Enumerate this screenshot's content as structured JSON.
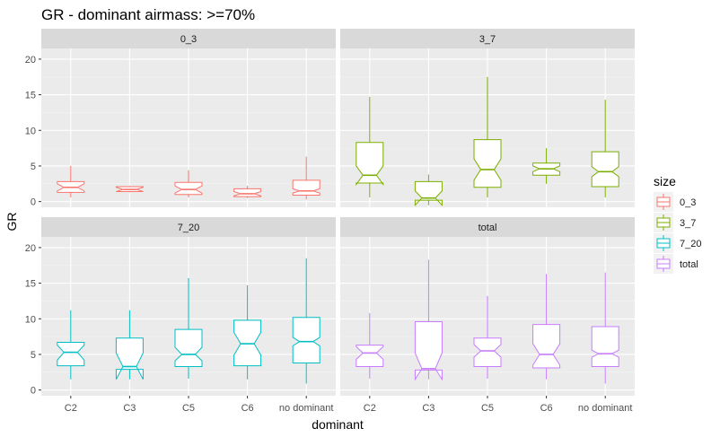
{
  "chart_data": {
    "type": "boxplot",
    "title": "GR - dominant airmass: >=70%",
    "xlabel": "dominant",
    "ylabel": "GR",
    "ylim": [
      -0.8,
      21.5
    ],
    "yticks": [
      0,
      5,
      10,
      15,
      20
    ],
    "categories": [
      "C2",
      "C3",
      "C5",
      "C6",
      "no dominant"
    ],
    "legend": {
      "title": "size",
      "position": "right",
      "entries": [
        {
          "label": "0_3",
          "color": "#F8766D"
        },
        {
          "label": "3_7",
          "color": "#7CAE00"
        },
        {
          "label": "7_20",
          "color": "#00BFC4"
        },
        {
          "label": "total",
          "color": "#C77CFF"
        }
      ]
    },
    "panels": [
      {
        "label": "0_3",
        "color": "#F8766D",
        "boxes": [
          {
            "category": "C2",
            "min": 0.6,
            "q1": 1.3,
            "median": 2.0,
            "q3": 2.8,
            "max": 5.0,
            "notch": [
              1.5,
              2.5
            ]
          },
          {
            "category": "C3",
            "min": 1.3,
            "q1": 1.4,
            "median": 1.7,
            "q3": 2.1,
            "max": 2.2,
            "notch": [
              1.4,
              2.0
            ]
          },
          {
            "category": "C5",
            "min": 0.6,
            "q1": 1.0,
            "median": 1.7,
            "q3": 2.7,
            "max": 4.4,
            "notch": [
              1.2,
              2.2
            ]
          },
          {
            "category": "C6",
            "min": 0.5,
            "q1": 0.7,
            "median": 1.1,
            "q3": 1.8,
            "max": 2.2,
            "notch": [
              0.8,
              1.4
            ]
          },
          {
            "category": "no dominant",
            "min": 0.3,
            "q1": 0.9,
            "median": 1.5,
            "q3": 3.0,
            "max": 6.3,
            "notch": [
              1.2,
              1.8
            ]
          }
        ]
      },
      {
        "label": "3_7",
        "color": "#7CAE00",
        "boxes": [
          {
            "category": "C2",
            "min": 0.6,
            "q1": 2.6,
            "median": 3.7,
            "q3": 8.3,
            "max": 14.7,
            "notch": [
              2.4,
              5.0
            ]
          },
          {
            "category": "C3",
            "min": -0.5,
            "q1": 0.2,
            "median": 0.5,
            "q3": 2.8,
            "max": 3.8,
            "notch": [
              -0.5,
              1.5
            ]
          },
          {
            "category": "C5",
            "min": 0.6,
            "q1": 2.0,
            "median": 4.5,
            "q3": 8.7,
            "max": 17.5,
            "notch": [
              3.0,
              6.0
            ]
          },
          {
            "category": "C6",
            "min": 2.5,
            "q1": 3.7,
            "median": 4.6,
            "q3": 5.4,
            "max": 7.5,
            "notch": [
              4.2,
              5.0
            ]
          },
          {
            "category": "no dominant",
            "min": 0.6,
            "q1": 2.1,
            "median": 4.2,
            "q3": 7.0,
            "max": 14.3,
            "notch": [
              3.5,
              4.9
            ]
          }
        ]
      },
      {
        "label": "7_20",
        "color": "#00BFC4",
        "boxes": [
          {
            "category": "C2",
            "min": 1.5,
            "q1": 3.4,
            "median": 5.3,
            "q3": 6.7,
            "max": 11.2,
            "notch": [
              4.2,
              6.3
            ]
          },
          {
            "category": "C3",
            "min": 1.5,
            "q1": 2.9,
            "median": 3.3,
            "q3": 7.3,
            "max": 11.2,
            "notch": [
              1.5,
              5.2
            ]
          },
          {
            "category": "C5",
            "min": 1.6,
            "q1": 3.3,
            "median": 5.0,
            "q3": 8.5,
            "max": 15.7,
            "notch": [
              4.1,
              6.0
            ]
          },
          {
            "category": "C6",
            "min": 1.5,
            "q1": 3.4,
            "median": 6.5,
            "q3": 9.8,
            "max": 14.7,
            "notch": [
              4.9,
              8.1
            ]
          },
          {
            "category": "no dominant",
            "min": 0.9,
            "q1": 3.8,
            "median": 6.8,
            "q3": 10.2,
            "max": 18.5,
            "notch": [
              6.2,
              7.4
            ]
          }
        ]
      },
      {
        "label": "total",
        "color": "#C77CFF",
        "boxes": [
          {
            "category": "C2",
            "min": 1.6,
            "q1": 3.3,
            "median": 5.2,
            "q3": 6.3,
            "max": 10.8,
            "notch": [
              4.3,
              6.1
            ]
          },
          {
            "category": "C3",
            "min": 1.5,
            "q1": 2.8,
            "median": 3.0,
            "q3": 9.6,
            "max": 18.3,
            "notch": [
              1.5,
              5.2
            ]
          },
          {
            "category": "C5",
            "min": 1.6,
            "q1": 3.3,
            "median": 5.5,
            "q3": 7.3,
            "max": 13.2,
            "notch": [
              4.6,
              6.4
            ]
          },
          {
            "category": "C6",
            "min": 1.5,
            "q1": 3.1,
            "median": 5.0,
            "q3": 9.2,
            "max": 16.3,
            "notch": [
              3.5,
              6.5
            ]
          },
          {
            "category": "no dominant",
            "min": 0.9,
            "q1": 3.3,
            "median": 5.1,
            "q3": 8.9,
            "max": 16.5,
            "notch": [
              4.6,
              5.6
            ]
          }
        ]
      }
    ]
  }
}
